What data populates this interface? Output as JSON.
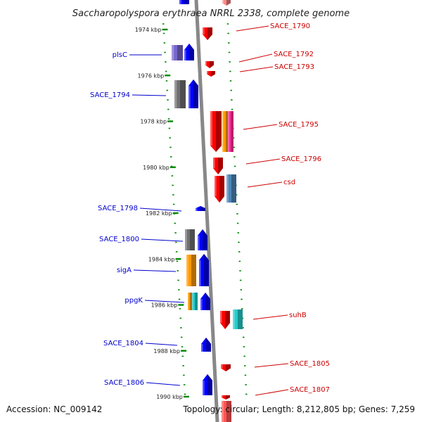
{
  "title": "Saccharopolyspora erythraea NRRL 2338, complete genome",
  "footer": {
    "accession": "Accession: NC_009142",
    "stats": "Topology: circular; Length: 8,212,805 bp; Genes: 7,259"
  },
  "colors": {
    "forward": "#0000ff",
    "reverse": "#ff0000",
    "label_forward": "#0000cc",
    "label_reverse": "#cc0000",
    "tick": "#008800",
    "backbone": "#888888",
    "gray": "#707070",
    "orange": "#ff9900",
    "purple": "#7766cc",
    "magenta": "#ff3399",
    "cyan": "#22cccc",
    "steelblue": "#4a86b8"
  },
  "kbp_ticks": [
    {
      "label": "1974 kbp",
      "kbp": 1974
    },
    {
      "label": "1976 kbp",
      "kbp": 1976
    },
    {
      "label": "1978 kbp",
      "kbp": 1978
    },
    {
      "label": "1980 kbp",
      "kbp": 1980
    },
    {
      "label": "1982 kbp",
      "kbp": 1982
    },
    {
      "label": "1984 kbp",
      "kbp": 1984
    },
    {
      "label": "1986 kbp",
      "kbp": 1986
    },
    {
      "label": "1988 kbp",
      "kbp": 1988
    },
    {
      "label": "1990 kbp",
      "kbp": 1990
    }
  ],
  "forward_labels": [
    "plsC",
    "SACE_1794",
    "SACE_1798",
    "SACE_1800",
    "sigA",
    "ppgK",
    "SACE_1804",
    "SACE_1806"
  ],
  "reverse_labels": [
    "SACE_1790",
    "SACE_1792",
    "SACE_1793",
    "SACE_1795",
    "SACE_1796",
    "csd",
    "suhB",
    "SACE_1805",
    "SACE_1807"
  ]
}
